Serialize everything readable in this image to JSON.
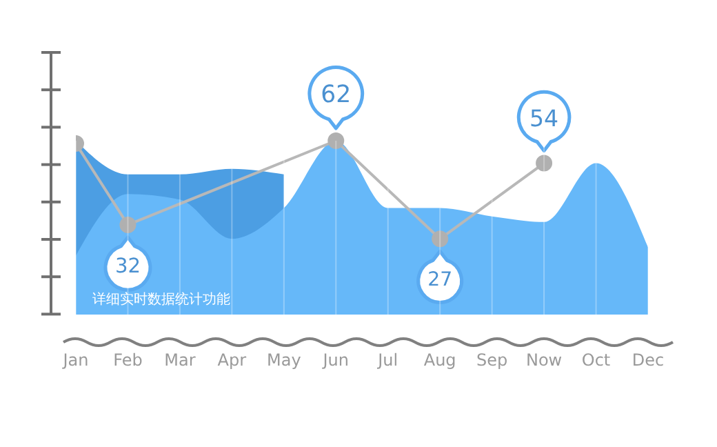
{
  "chart_data": {
    "type": "area",
    "grid": "x",
    "tick_labels": "x",
    "categories": [
      "Jan",
      "Feb",
      "Mar",
      "Apr",
      "May",
      "Jun",
      "Jul",
      "Aug",
      "Sep",
      "Now",
      "Oct",
      "Dec"
    ],
    "series": [
      {
        "color": "#4c9ee3",
        "values": [
          62,
          50,
          50,
          52,
          50,
          null,
          null,
          null,
          null,
          null,
          null,
          null
        ]
      },
      {
        "color": "#66b8f9",
        "values": [
          21,
          43,
          41,
          27,
          38,
          62,
          38,
          38,
          35,
          33,
          54,
          24
        ]
      },
      {
        "type": "line",
        "marker": "circle",
        "color": "#b8b8b8",
        "values": [
          61,
          32,
          null,
          null,
          null,
          62,
          null,
          27,
          null,
          54,
          null,
          null
        ],
        "value_labels": [
          null,
          "32",
          null,
          null,
          null,
          "62",
          null,
          "27",
          null,
          "54",
          null,
          null
        ]
      }
    ],
    "annotations": [
      "详细实时数据统计功能"
    ]
  }
}
